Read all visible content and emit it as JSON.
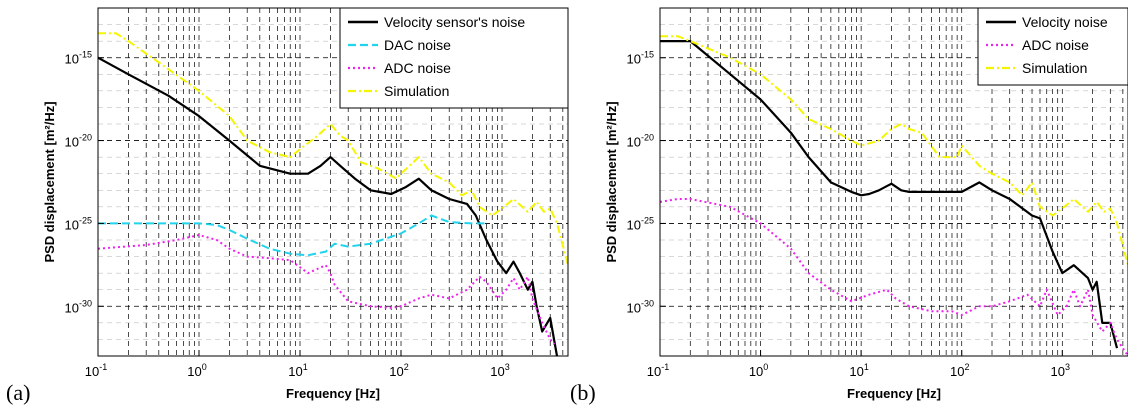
{
  "chart_data": [
    {
      "type": "line",
      "panel_label": "(a)",
      "xlabel": "Frequency [Hz]",
      "ylabel": "PSD displacement [m²/Hz]",
      "x_scale": "log",
      "y_scale": "log",
      "xlim": [
        0.1,
        4500
      ],
      "ylim": [
        1e-33,
        1e-12
      ],
      "x_ticks": [
        {
          "base": "10",
          "exp": "-1"
        },
        {
          "base": "10",
          "exp": "0"
        },
        {
          "base": "10",
          "exp": "1"
        },
        {
          "base": "10",
          "exp": "2"
        },
        {
          "base": "10",
          "exp": "3"
        }
      ],
      "y_ticks": [
        {
          "base": "10",
          "exp": "-30",
          "value": 1e-30
        },
        {
          "base": "10",
          "exp": "-25",
          "value": 1e-25
        },
        {
          "base": "10",
          "exp": "-20",
          "value": 1e-20
        },
        {
          "base": "10",
          "exp": "-15",
          "value": 1e-15
        }
      ],
      "grid": true,
      "legend_position": "top-right",
      "series": [
        {
          "name": "Velocity sensor's noise",
          "color": "#000000",
          "style": "solid",
          "x": [
            0.1,
            0.2,
            0.5,
            1,
            2,
            4,
            8,
            12,
            16,
            20,
            25,
            35,
            50,
            80,
            110,
            150,
            200,
            300,
            450,
            550,
            700,
            900,
            1100,
            1300,
            1500,
            1800,
            2000,
            2200,
            2500,
            3000,
            3500
          ],
          "y": [
            1e-15,
            1e-16,
            5e-18,
            3e-19,
            1e-20,
            3e-22,
            1e-22,
            1e-22,
            3e-22,
            1e-21,
            3e-22,
            5e-23,
            1e-23,
            6e-24,
            1.5e-23,
            5e-23,
            1e-23,
            3e-24,
            1.5e-24,
            3e-25,
            1e-26,
            5e-28,
            1e-28,
            5e-28,
            1e-28,
            1e-29,
            3e-29,
            1e-30,
            3e-32,
            2e-31,
            1e-33
          ]
        },
        {
          "name": "DAC noise",
          "color": "#22d3ee",
          "style": "dashed",
          "x": [
            0.1,
            0.5,
            1,
            1.5,
            2,
            3,
            5,
            8,
            12,
            18,
            22,
            30,
            50,
            100,
            150,
            200,
            300,
            500,
            700
          ],
          "y": [
            1e-25,
            1e-25,
            1e-25,
            8e-26,
            4e-26,
            1.2e-26,
            3e-27,
            1.5e-27,
            1.2e-27,
            2e-27,
            6e-27,
            4e-27,
            6e-27,
            2.5e-26,
            1e-25,
            3e-25,
            1.2e-25,
            1e-25,
            1e-25
          ]
        },
        {
          "name": "ADC noise",
          "color": "#ee22ee",
          "style": "dotted",
          "x": [
            0.1,
            0.3,
            0.6,
            1,
            1.5,
            2,
            3,
            5,
            8,
            12,
            18,
            20,
            22,
            30,
            50,
            80,
            100,
            150,
            200,
            300,
            450,
            600,
            700,
            900,
            1100,
            1300,
            1500,
            1800,
            2000,
            2500,
            3000,
            3300
          ],
          "y": [
            3e-27,
            5e-27,
            1e-26,
            2e-26,
            1e-26,
            3e-27,
            1e-27,
            8e-28,
            6e-28,
            1e-28,
            3e-28,
            1e-28,
            2e-29,
            2e-30,
            1e-30,
            8e-31,
            1e-30,
            3e-30,
            5e-30,
            3e-30,
            1e-29,
            6e-29,
            3e-29,
            3e-30,
            1e-29,
            5e-29,
            1e-29,
            6e-29,
            3e-30,
            1e-31,
            1e-32,
            5e-33
          ]
        },
        {
          "name": "Simulation",
          "color": "#f5f500",
          "style": "dashdot",
          "x": [
            0.1,
            0.15,
            0.2,
            0.5,
            1,
            2,
            3,
            5,
            8,
            10,
            15,
            20,
            25,
            30,
            40,
            60,
            90,
            100,
            150,
            200,
            300,
            400,
            500,
            600,
            800,
            1000,
            1300,
            1800,
            2200,
            2600,
            3000,
            3500,
            4500
          ],
          "y": [
            3e-14,
            3e-14,
            1e-14,
            2e-16,
            1e-17,
            3e-19,
            1e-20,
            2e-21,
            1e-21,
            3e-21,
            2e-20,
            1e-19,
            2e-20,
            1e-20,
            5e-22,
            2e-22,
            5e-23,
            1e-22,
            1e-21,
            1e-22,
            3e-23,
            5e-24,
            1e-23,
            1e-24,
            3e-25,
            8e-25,
            3e-24,
            5e-25,
            2e-24,
            5e-25,
            8e-25,
            1e-25,
            3e-28
          ]
        }
      ]
    },
    {
      "type": "line",
      "panel_label": "(b)",
      "xlabel": "Frequency [Hz]",
      "ylabel": "PSD displacement [m²/Hz]",
      "x_scale": "log",
      "y_scale": "log",
      "xlim": [
        0.1,
        4500
      ],
      "ylim": [
        1e-33,
        1e-12
      ],
      "x_ticks": [
        {
          "base": "10",
          "exp": "-1"
        },
        {
          "base": "10",
          "exp": "0"
        },
        {
          "base": "10",
          "exp": "1"
        },
        {
          "base": "10",
          "exp": "2"
        },
        {
          "base": "10",
          "exp": "3"
        }
      ],
      "y_ticks": [
        {
          "base": "10",
          "exp": "-30",
          "value": 1e-30
        },
        {
          "base": "10",
          "exp": "-25",
          "value": 1e-25
        },
        {
          "base": "10",
          "exp": "-20",
          "value": 1e-20
        },
        {
          "base": "10",
          "exp": "-15",
          "value": 1e-15
        }
      ],
      "grid": true,
      "legend_position": "top-right",
      "series": [
        {
          "name": "Velocity noise",
          "color": "#000000",
          "style": "solid",
          "x": [
            0.1,
            0.15,
            0.2,
            0.5,
            1,
            2,
            3,
            5,
            8,
            10,
            12,
            15,
            20,
            25,
            30,
            50,
            100,
            150,
            200,
            300,
            500,
            600,
            800,
            1000,
            1300,
            1800,
            2000,
            2200,
            2500,
            3000,
            3500
          ],
          "y": [
            1e-14,
            1e-14,
            1e-14,
            1e-16,
            3e-18,
            3e-20,
            1e-21,
            3e-23,
            8e-24,
            5e-24,
            6e-24,
            1e-23,
            2.5e-23,
            1e-23,
            8e-24,
            8e-24,
            8e-24,
            3e-23,
            1e-23,
            3e-24,
            3e-25,
            2e-25,
            2e-27,
            1e-28,
            3e-28,
            5e-29,
            1e-29,
            3e-29,
            1e-31,
            1e-31,
            3e-33
          ]
        },
        {
          "name": "ADC noise",
          "color": "#ee22ee",
          "style": "dotted",
          "x": [
            0.1,
            0.15,
            0.2,
            0.5,
            1,
            2,
            3,
            5,
            8,
            12,
            18,
            22,
            30,
            50,
            80,
            100,
            150,
            200,
            300,
            450,
            600,
            700,
            900,
            1100,
            1300,
            1500,
            1800,
            2000,
            2500,
            3000,
            3500,
            4500
          ],
          "y": [
            2e-24,
            3e-24,
            3e-24,
            1e-24,
            1e-25,
            3e-27,
            1e-28,
            1e-29,
            2e-30,
            5e-30,
            1e-29,
            3e-30,
            1e-30,
            5e-31,
            5e-31,
            3e-31,
            1e-30,
            1e-30,
            2e-30,
            5e-30,
            1e-30,
            1e-29,
            3e-31,
            1e-30,
            1e-29,
            1e-30,
            1e-29,
            3e-31,
            3e-32,
            1e-31,
            1e-32,
            1e-33
          ]
        },
        {
          "name": "Simulation",
          "color": "#f5f500",
          "style": "dashdot",
          "x": [
            0.1,
            0.15,
            0.2,
            0.5,
            1,
            2,
            3,
            5,
            8,
            10,
            15,
            20,
            25,
            30,
            40,
            60,
            90,
            100,
            150,
            200,
            300,
            400,
            500,
            600,
            800,
            1000,
            1300,
            1800,
            2200,
            2600,
            3000,
            3500,
            4500
          ],
          "y": [
            2e-14,
            2e-14,
            1e-14,
            1e-15,
            1e-16,
            3e-18,
            2e-19,
            5e-20,
            1e-20,
            5e-21,
            1e-20,
            5e-20,
            1e-19,
            5e-20,
            3e-20,
            1e-21,
            1e-21,
            5e-21,
            3e-22,
            1e-22,
            3e-23,
            5e-24,
            3e-23,
            1e-24,
            3e-25,
            8e-25,
            3e-24,
            5e-25,
            2e-24,
            5e-25,
            8e-25,
            1e-25,
            3e-28
          ]
        }
      ]
    }
  ]
}
